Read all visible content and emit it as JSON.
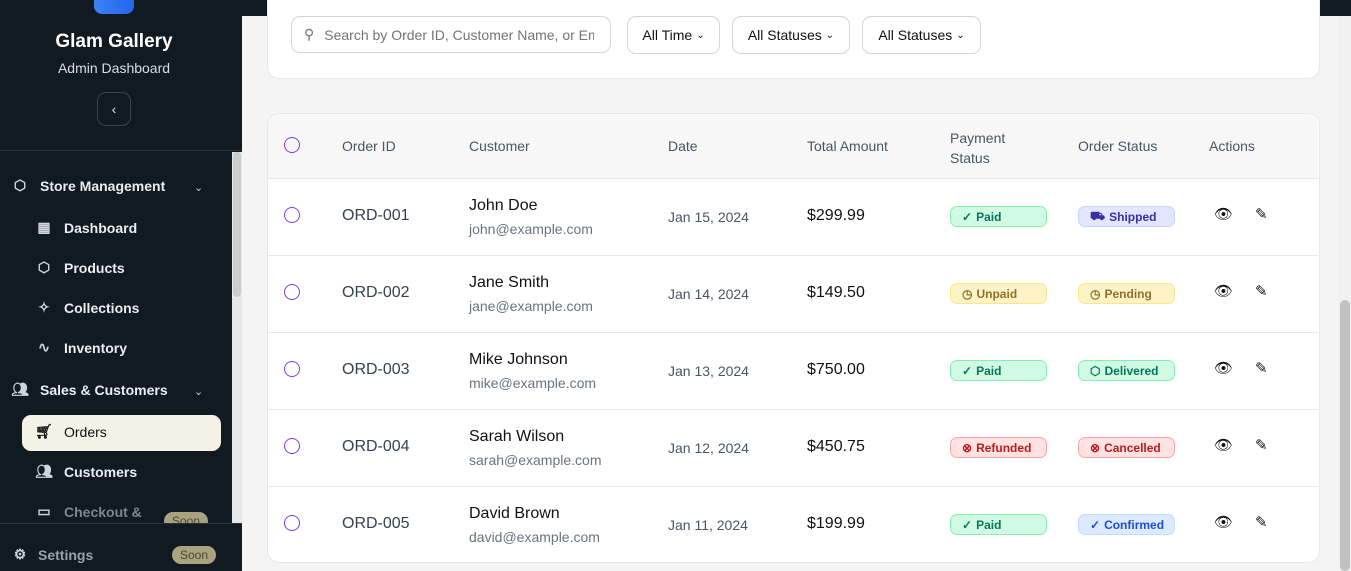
{
  "sidebar": {
    "brand": "Glam Gallery",
    "subtitle": "Admin Dashboard",
    "groups": [
      {
        "label": "Store Management",
        "items": [
          "Dashboard",
          "Products",
          "Collections",
          "Inventory"
        ]
      },
      {
        "label": "Sales & Customers",
        "items": [
          "Orders",
          "Customers",
          "Checkout &"
        ]
      }
    ],
    "soon": "Soon",
    "settings": "Settings",
    "active": "Orders"
  },
  "filters": {
    "search_placeholder": "Search by Order ID, Customer Name, or Email",
    "time": "All Time",
    "status1": "All Statuses",
    "status2": "All Statuses"
  },
  "table": {
    "headers": [
      "Order ID",
      "Customer",
      "Date",
      "Total Amount",
      "Payment Status",
      "Order Status",
      "Actions"
    ],
    "rows": [
      {
        "id": "ORD-001",
        "name": "John Doe",
        "email": "john@example.com",
        "date": "Jan 15, 2024",
        "total": "$299.99",
        "payment": "Paid",
        "status": "Shipped"
      },
      {
        "id": "ORD-002",
        "name": "Jane Smith",
        "email": "jane@example.com",
        "date": "Jan 14, 2024",
        "total": "$149.50",
        "payment": "Unpaid",
        "status": "Pending"
      },
      {
        "id": "ORD-003",
        "name": "Mike Johnson",
        "email": "mike@example.com",
        "date": "Jan 13, 2024",
        "total": "$750.00",
        "payment": "Paid",
        "status": "Delivered"
      },
      {
        "id": "ORD-004",
        "name": "Sarah Wilson",
        "email": "sarah@example.com",
        "date": "Jan 12, 2024",
        "total": "$450.75",
        "payment": "Refunded",
        "status": "Cancelled"
      },
      {
        "id": "ORD-005",
        "name": "David Brown",
        "email": "david@example.com",
        "date": "Jan 11, 2024",
        "total": "$199.99",
        "payment": "Paid",
        "status": "Confirmed"
      }
    ]
  },
  "badge_colors": {
    "Paid": "#d1fae5",
    "Unpaid": "#fef3c7",
    "Refunded": "#fee2e2",
    "Shipped": "#e0e7ff",
    "Pending": "#fef3c7",
    "Delivered": "#d1fae5",
    "Cancelled": "#fee2e2",
    "Confirmed": "#dbeafe"
  }
}
